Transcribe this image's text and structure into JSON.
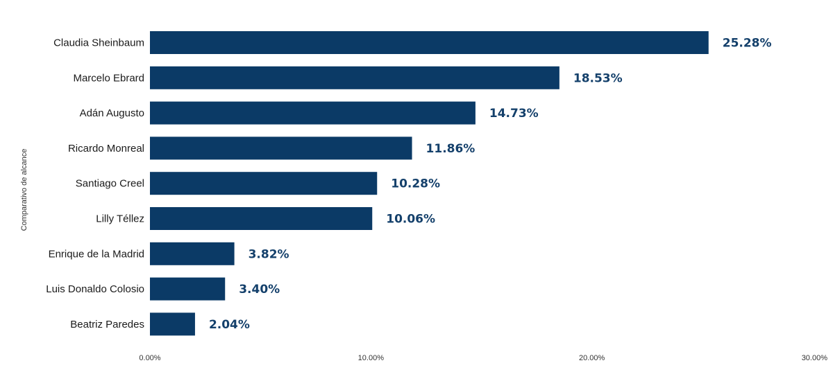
{
  "chart_data": {
    "type": "bar",
    "orientation": "horizontal",
    "title": "",
    "xlabel": "",
    "ylabel": "Comparativo de alcance",
    "categories": [
      "Claudia Sheinbaum",
      "Marcelo Ebrard",
      "Adán Augusto",
      "Ricardo Monreal",
      "Santiago Creel",
      "Lilly Téllez",
      "Enrique de la Madrid",
      "Luis Donaldo Colosio",
      "Beatriz Paredes"
    ],
    "values": [
      25.28,
      18.53,
      14.73,
      11.86,
      10.28,
      10.06,
      3.82,
      3.4,
      2.04
    ],
    "value_labels": [
      "25.28%",
      "18.53%",
      "14.73%",
      "11.86%",
      "10.28%",
      "10.06%",
      "3.82%",
      "3.40%",
      "2.04%"
    ],
    "xlim": [
      0,
      30
    ],
    "xticks": [
      0,
      10,
      20,
      30
    ],
    "xtick_labels": [
      "0.00%",
      "10.00%",
      "20.00%",
      "30.00%"
    ],
    "grid": false,
    "legend": "none",
    "bar_color": "#0b3a66",
    "label_color": "#14406b"
  }
}
